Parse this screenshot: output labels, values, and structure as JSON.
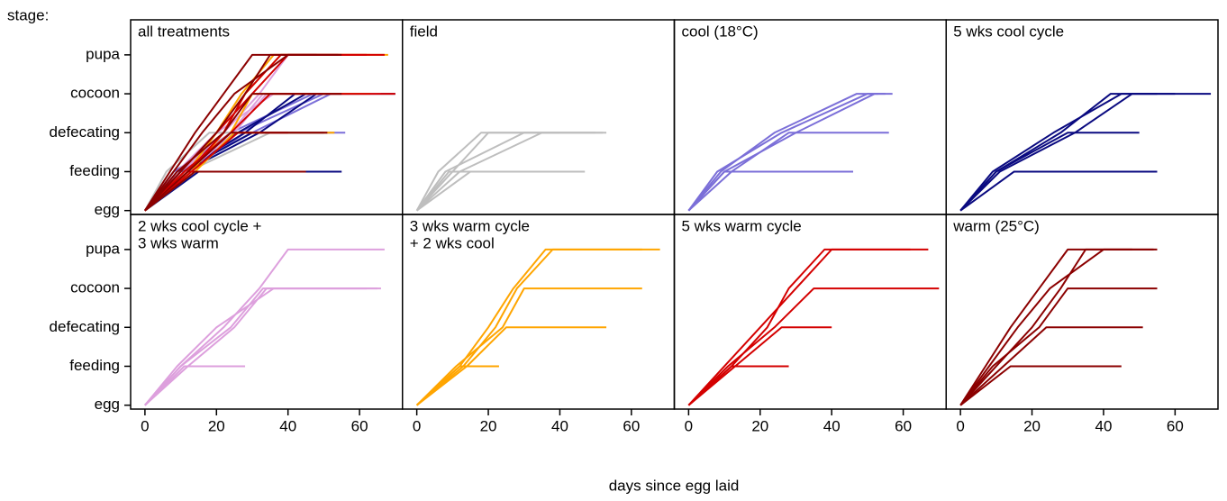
{
  "chart_data": {
    "type": "line",
    "y_label": "stage:",
    "x_label": "days since egg laid",
    "ylim": [
      -0.1,
      4.9
    ],
    "yticks": [
      {
        "value": 0,
        "label": "egg"
      },
      {
        "value": 1,
        "label": "feeding"
      },
      {
        "value": 2,
        "label": "defecating"
      },
      {
        "value": 3,
        "label": "cocoon"
      },
      {
        "value": 4,
        "label": "pupa"
      }
    ],
    "xlim": [
      -4,
      72
    ],
    "xticks": [
      0,
      20,
      40,
      60
    ],
    "panels": [
      {
        "title": [
          "all treatments"
        ]
      },
      {
        "title": [
          "field"
        ],
        "color": "#bebebe",
        "series": [
          {
            "x": [
              0,
              10,
              20,
              53
            ],
            "values": [
              0,
              1,
              2,
              2
            ]
          },
          {
            "x": [
              0,
              8,
              30,
              50
            ],
            "values": [
              0,
              1,
              2,
              2
            ]
          },
          {
            "x": [
              0,
              12,
              35,
              52
            ],
            "values": [
              0,
              1,
              2,
              2
            ]
          },
          {
            "x": [
              0,
              9,
              47
            ],
            "values": [
              0,
              1,
              1
            ]
          },
          {
            "x": [
              0,
              15,
              45
            ],
            "values": [
              0,
              1,
              1
            ]
          },
          {
            "x": [
              0,
              6,
              18,
              40
            ],
            "values": [
              0,
              1,
              2,
              2
            ]
          }
        ]
      },
      {
        "title": [
          "cool (18°C)"
        ],
        "color": "#7b6fd8",
        "series": [
          {
            "x": [
              0,
              8,
              26,
              50,
              55
            ],
            "values": [
              0,
              1,
              2,
              3,
              3
            ]
          },
          {
            "x": [
              0,
              10,
              30,
              52,
              57
            ],
            "values": [
              0,
              1,
              2,
              3,
              3
            ]
          },
          {
            "x": [
              0,
              9,
              24,
              47,
              53
            ],
            "values": [
              0,
              1,
              2,
              3,
              3
            ]
          },
          {
            "x": [
              0,
              12,
              28,
              40,
              56
            ],
            "values": [
              0,
              1,
              2,
              2,
              2
            ]
          },
          {
            "x": [
              0,
              10,
              46
            ],
            "values": [
              0,
              1,
              1
            ]
          }
        ]
      },
      {
        "title": [
          "5 wks cool cycle"
        ],
        "color": "#0a0a80",
        "series": [
          {
            "x": [
              0,
              10,
              28,
              42,
              70
            ],
            "values": [
              0,
              1,
              2,
              3,
              3
            ]
          },
          {
            "x": [
              0,
              9,
              26,
              45,
              60
            ],
            "values": [
              0,
              1,
              2,
              3,
              3
            ]
          },
          {
            "x": [
              0,
              11,
              32,
              48,
              55
            ],
            "values": [
              0,
              1,
              2,
              3,
              3
            ]
          },
          {
            "x": [
              0,
              10,
              30,
              50
            ],
            "values": [
              0,
              1,
              2,
              2
            ]
          },
          {
            "x": [
              0,
              15,
              55
            ],
            "values": [
              0,
              1,
              1
            ]
          }
        ]
      },
      {
        "title": [
          "2 wks cool cycle +",
          "3 wks warm"
        ],
        "color": "#dda0dd",
        "series": [
          {
            "x": [
              0,
              10,
              22,
              32,
              40,
              67
            ],
            "values": [
              0,
              1,
              2,
              3,
              4,
              4
            ]
          },
          {
            "x": [
              0,
              12,
              25,
              34,
              66
            ],
            "values": [
              0,
              1,
              2,
              3,
              3
            ]
          },
          {
            "x": [
              0,
              10,
              24,
              33,
              65
            ],
            "values": [
              0,
              1,
              2,
              3,
              3
            ]
          },
          {
            "x": [
              0,
              9,
              20,
              36,
              62
            ],
            "values": [
              0,
              1,
              2,
              3,
              3
            ]
          },
          {
            "x": [
              0,
              11,
              28
            ],
            "values": [
              0,
              1,
              1
            ]
          }
        ]
      },
      {
        "title": [
          "3 wks warm cycle",
          "+ 2 wks cool"
        ],
        "color": "#ffa500",
        "series": [
          {
            "x": [
              0,
              13,
              22,
              28,
              38,
              68
            ],
            "values": [
              0,
              1,
              2,
              3,
              4,
              4
            ]
          },
          {
            "x": [
              0,
              12,
              20,
              27,
              36,
              63
            ],
            "values": [
              0,
              1,
              2,
              3,
              4,
              4
            ]
          },
          {
            "x": [
              0,
              11,
              24,
              30,
              63
            ],
            "values": [
              0,
              1,
              2,
              3,
              3
            ]
          },
          {
            "x": [
              0,
              14,
              25,
              53
            ],
            "values": [
              0,
              1,
              2,
              2
            ]
          },
          {
            "x": [
              0,
              12,
              23
            ],
            "values": [
              0,
              1,
              1
            ]
          }
        ]
      },
      {
        "title": [
          "5 wks warm cycle"
        ],
        "color": "#d40000",
        "series": [
          {
            "x": [
              0,
              10,
              20,
              30,
              40,
              67
            ],
            "values": [
              0,
              1,
              2,
              3,
              4,
              4
            ]
          },
          {
            "x": [
              0,
              12,
              22,
              28,
              38,
              62
            ],
            "values": [
              0,
              1,
              2,
              3,
              4,
              4
            ]
          },
          {
            "x": [
              0,
              11,
              24,
              35,
              70
            ],
            "values": [
              0,
              1,
              2,
              3,
              3
            ]
          },
          {
            "x": [
              0,
              13,
              26,
              40
            ],
            "values": [
              0,
              1,
              2,
              2
            ]
          },
          {
            "x": [
              0,
              12,
              28
            ],
            "values": [
              0,
              1,
              1
            ]
          }
        ]
      },
      {
        "title": [
          "warm (25°C)"
        ],
        "color": "#8b0000",
        "series": [
          {
            "x": [
              0,
              8,
              16,
              25,
              40,
              55
            ],
            "values": [
              0,
              1,
              2,
              3,
              4,
              4
            ]
          },
          {
            "x": [
              0,
              10,
              20,
              28,
              35,
              54
            ],
            "values": [
              0,
              1,
              2,
              3,
              4,
              4
            ]
          },
          {
            "x": [
              0,
              9,
              22,
              30,
              55
            ],
            "values": [
              0,
              1,
              2,
              3,
              3
            ]
          },
          {
            "x": [
              0,
              12,
              24,
              51
            ],
            "values": [
              0,
              1,
              2,
              2
            ]
          },
          {
            "x": [
              0,
              14,
              45
            ],
            "values": [
              0,
              1,
              1
            ]
          },
          {
            "x": [
              0,
              7,
              14,
              22,
              30,
              48
            ],
            "values": [
              0,
              1,
              2,
              3,
              4,
              4
            ]
          }
        ]
      }
    ]
  }
}
